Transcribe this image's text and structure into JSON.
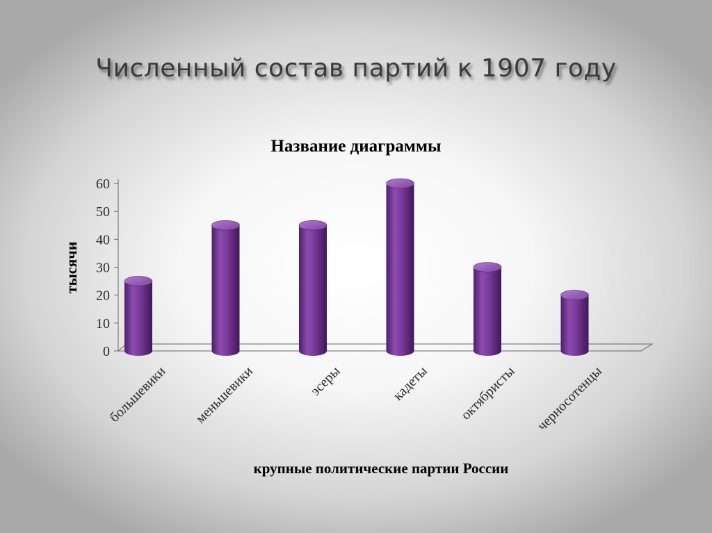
{
  "slide": {
    "title": "Численный состав партий к 1907 году"
  },
  "colors": {
    "bar_main": "#7a3a9a",
    "bar_dark": "#4e1f68",
    "bar_light": "#a56ac5",
    "axis": "#666666"
  },
  "chart_data": {
    "type": "bar",
    "title": "Название диаграммы",
    "xlabel": "крупные политические партии России",
    "ylabel": "тысячи",
    "categories": [
      "большевики",
      "меньшевики",
      "эсеры",
      "кадеты",
      "октябристы",
      "черносотенцы"
    ],
    "values": [
      25,
      45,
      45,
      60,
      30,
      20
    ],
    "ylim": [
      0,
      60
    ],
    "yticks": [
      0,
      10,
      20,
      30,
      40,
      50,
      60
    ],
    "grid": false,
    "legend": "none",
    "style": "3d-cylinder"
  }
}
